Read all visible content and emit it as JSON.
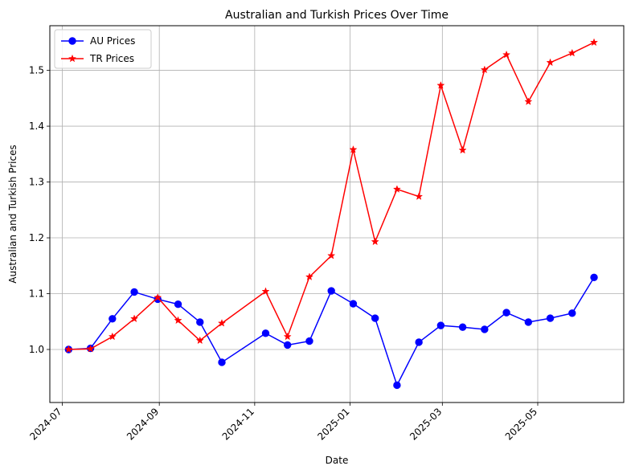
{
  "chart_data": {
    "type": "line",
    "title": "Australian and Turkish Prices Over Time",
    "xlabel": "Date",
    "ylabel": "Australian and Turkish Prices",
    "x_ticks": [
      "2024-07",
      "2024-09",
      "2024-11",
      "2025-01",
      "2025-03",
      "2025-05"
    ],
    "y_ticks": [
      1.0,
      1.1,
      1.2,
      1.3,
      1.4,
      1.5
    ],
    "xlim": [
      "2024-06-23",
      "2025-06-25"
    ],
    "ylim": [
      0.905,
      1.58
    ],
    "grid": true,
    "legend_position": "top-left",
    "series": [
      {
        "name": "AU Prices",
        "color": "#0000ff",
        "marker": "circle",
        "points": [
          [
            "2024-07-05",
            1.0
          ],
          [
            "2024-07-19",
            1.002
          ],
          [
            "2024-08-02",
            1.055
          ],
          [
            "2024-08-16",
            1.103
          ],
          [
            "2024-08-31",
            1.09
          ],
          [
            "2024-09-13",
            1.081
          ],
          [
            "2024-09-27",
            1.049
          ],
          [
            "2024-10-11",
            0.977
          ],
          [
            "2024-11-08",
            1.029
          ],
          [
            "2024-11-22",
            1.008
          ],
          [
            "2024-12-06",
            1.015
          ],
          [
            "2024-12-20",
            1.105
          ],
          [
            "2025-01-03",
            1.082
          ],
          [
            "2025-01-17",
            1.056
          ],
          [
            "2025-01-31",
            0.936
          ],
          [
            "2025-02-14",
            1.013
          ],
          [
            "2025-02-28",
            1.043
          ],
          [
            "2025-03-14",
            1.04
          ],
          [
            "2025-03-28",
            1.036
          ],
          [
            "2025-04-11",
            1.066
          ],
          [
            "2025-04-25",
            1.049
          ],
          [
            "2025-05-09",
            1.056
          ],
          [
            "2025-05-23",
            1.065
          ],
          [
            "2025-06-06",
            1.129
          ]
        ]
      },
      {
        "name": "TR Prices",
        "color": "#ff0000",
        "marker": "star",
        "points": [
          [
            "2024-07-05",
            1.0
          ],
          [
            "2024-07-19",
            1.001
          ],
          [
            "2024-08-02",
            1.023
          ],
          [
            "2024-08-16",
            1.055
          ],
          [
            "2024-08-31",
            1.093
          ],
          [
            "2024-09-13",
            1.052
          ],
          [
            "2024-09-27",
            1.016
          ],
          [
            "2024-10-11",
            1.047
          ],
          [
            "2024-11-08",
            1.104
          ],
          [
            "2024-11-22",
            1.023
          ],
          [
            "2024-12-06",
            1.13
          ],
          [
            "2024-12-20",
            1.168
          ],
          [
            "2025-01-03",
            1.358
          ],
          [
            "2025-01-17",
            1.193
          ],
          [
            "2025-01-31",
            1.287
          ],
          [
            "2025-02-14",
            1.274
          ],
          [
            "2025-02-28",
            1.473
          ],
          [
            "2025-03-14",
            1.357
          ],
          [
            "2025-03-28",
            1.501
          ],
          [
            "2025-04-11",
            1.528
          ],
          [
            "2025-04-25",
            1.444
          ],
          [
            "2025-05-09",
            1.514
          ],
          [
            "2025-05-23",
            1.531
          ],
          [
            "2025-06-06",
            1.55
          ]
        ]
      }
    ]
  }
}
